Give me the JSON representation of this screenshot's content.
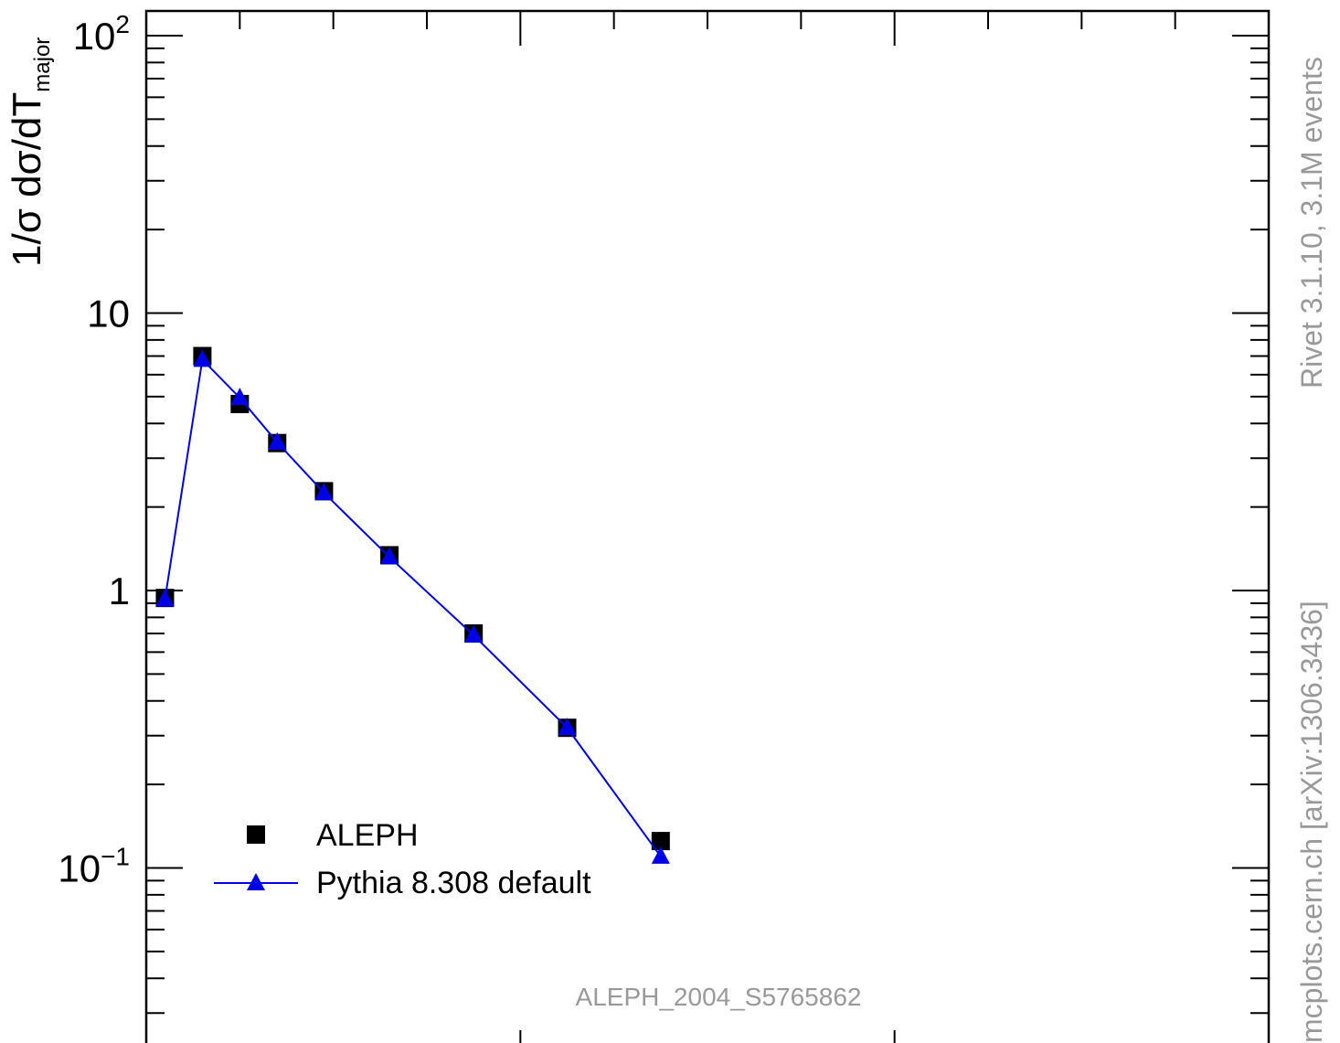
{
  "chart_data": {
    "type": "scatter",
    "title": "",
    "ylabel": "1/σ dσ/dT",
    "ylabel_subscript": "major",
    "yscale": "log",
    "ylim": [
      0.025,
      130
    ],
    "xlim": [
      0.0,
      0.6
    ],
    "x_ticks_labelled": [],
    "y_tick_labels": {
      "y100": {
        "base": "10",
        "exp": "2"
      },
      "y10": "10",
      "y1": "1",
      "y01": {
        "base": "10",
        "exp": "−1"
      }
    },
    "series": [
      {
        "name": "ALEPH",
        "marker": "square",
        "color": "#000000",
        "x": [
          0.01,
          0.03,
          0.05,
          0.07,
          0.095,
          0.13,
          0.175,
          0.225,
          0.275
        ],
        "values": [
          0.94,
          7.0,
          4.7,
          3.4,
          2.28,
          1.34,
          0.7,
          0.32,
          0.125
        ]
      },
      {
        "name": "Pythia 8.308 default",
        "marker": "triangle",
        "line": true,
        "color": "#0000e6",
        "x": [
          0.01,
          0.03,
          0.05,
          0.07,
          0.095,
          0.13,
          0.175,
          0.225,
          0.275
        ],
        "values": [
          0.93,
          6.8,
          4.95,
          3.42,
          2.25,
          1.32,
          0.69,
          0.32,
          0.11
        ]
      }
    ],
    "legend": {
      "position": "bottom-left"
    },
    "annotations": {
      "analysis_id": "ALEPH_2004_S5765862",
      "side_top": "Rivet 3.1.10,  3.1M events",
      "side_bottom": "mcplots.cern.ch [arXiv:1306.3436]"
    }
  }
}
